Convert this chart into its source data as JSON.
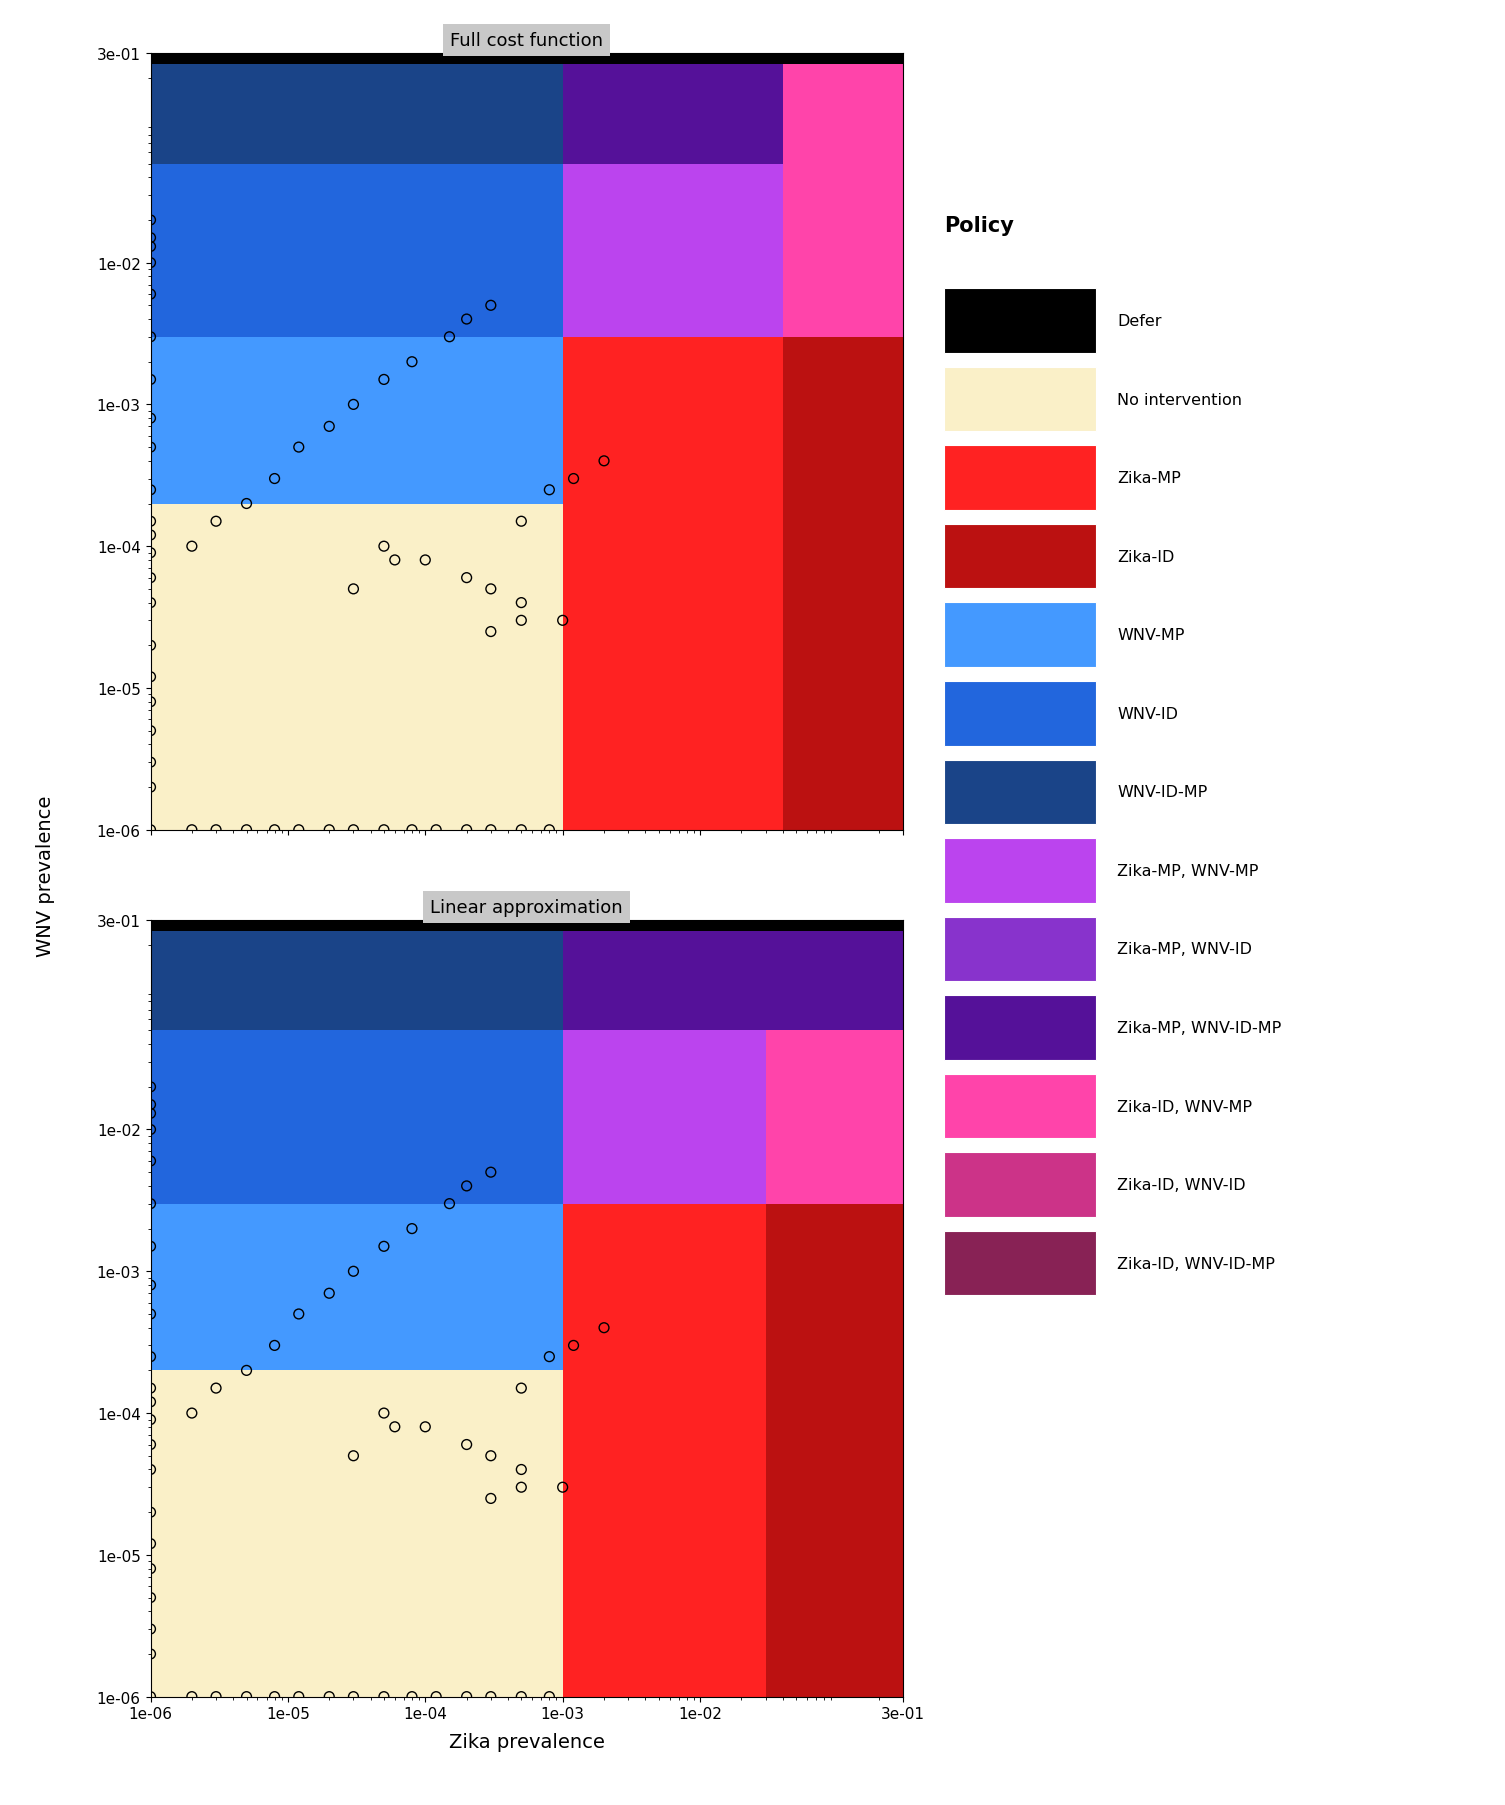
{
  "policy_colors": {
    "Defer": "#000000",
    "No intervention": "#FAF0C8",
    "Zika-MP": "#FF2222",
    "Zika-ID": "#BB1111",
    "WNV-MP": "#4499FF",
    "WNV-ID": "#2266DD",
    "WNV-ID-MP": "#1A4488",
    "Zika-MP, WNV-MP": "#BB44EE",
    "Zika-MP, WNV-ID": "#8833CC",
    "Zika-MP, WNV-ID-MP": "#551199",
    "Zika-ID, WNV-MP": "#FF44AA",
    "Zika-ID, WNV-ID": "#CC3388",
    "Zika-ID, WNV-ID-MP": "#882255"
  },
  "legend_order": [
    "Defer",
    "No intervention",
    "Zika-MP",
    "Zika-ID",
    "WNV-MP",
    "WNV-ID",
    "WNV-ID-MP",
    "Zika-MP, WNV-MP",
    "Zika-MP, WNV-ID",
    "Zika-MP, WNV-ID-MP",
    "Zika-ID, WNV-MP",
    "Zika-ID, WNV-ID",
    "Zika-ID, WNV-ID-MP"
  ],
  "subplot_titles": [
    "Full cost function",
    "Linear approximation"
  ],
  "xlabel": "Zika prevalence",
  "ylabel": "WNV prevalence",
  "xlim": [
    1e-06,
    0.3
  ],
  "ylim": [
    1e-06,
    0.3
  ],
  "scatter_points": [
    [
      1e-06,
      1e-06
    ],
    [
      1e-06,
      2e-06
    ],
    [
      1e-06,
      3e-06
    ],
    [
      1e-06,
      5e-06
    ],
    [
      1e-06,
      8e-06
    ],
    [
      1e-06,
      1.2e-05
    ],
    [
      1e-06,
      2e-05
    ],
    [
      1e-06,
      4e-05
    ],
    [
      1e-06,
      6e-05
    ],
    [
      1e-06,
      9e-05
    ],
    [
      1e-06,
      0.00012
    ],
    [
      1e-06,
      0.00015
    ],
    [
      1e-06,
      0.00025
    ],
    [
      1e-06,
      0.0005
    ],
    [
      1e-06,
      0.0008
    ],
    [
      1e-06,
      0.0015
    ],
    [
      1e-06,
      0.003
    ],
    [
      1e-06,
      0.006
    ],
    [
      1e-06,
      0.01
    ],
    [
      1e-06,
      0.013
    ],
    [
      1e-06,
      0.015
    ],
    [
      1e-06,
      0.02
    ],
    [
      2e-06,
      0.0001
    ],
    [
      3e-06,
      0.00015
    ],
    [
      5e-06,
      0.0002
    ],
    [
      8e-06,
      0.0003
    ],
    [
      1.2e-05,
      0.0005
    ],
    [
      2e-05,
      0.0007
    ],
    [
      3e-05,
      0.001
    ],
    [
      5e-05,
      0.0015
    ],
    [
      8e-05,
      0.002
    ],
    [
      0.00015,
      0.003
    ],
    [
      0.0002,
      0.004
    ],
    [
      0.0003,
      0.005
    ],
    [
      0.0005,
      0.00015
    ],
    [
      0.0008,
      0.00025
    ],
    [
      0.0012,
      0.0003
    ],
    [
      0.002,
      0.0004
    ],
    [
      5e-05,
      0.0001
    ],
    [
      0.0001,
      8e-05
    ],
    [
      0.0002,
      6e-05
    ],
    [
      0.0003,
      5e-05
    ],
    [
      0.0005,
      4e-05
    ],
    [
      0.001,
      3e-05
    ],
    [
      3e-05,
      5e-05
    ],
    [
      6e-05,
      8e-05
    ],
    [
      2e-06,
      1e-06
    ],
    [
      3e-06,
      1e-06
    ],
    [
      5e-06,
      1e-06
    ],
    [
      8e-06,
      1e-06
    ],
    [
      1.2e-05,
      1e-06
    ],
    [
      2e-05,
      1e-06
    ],
    [
      3e-05,
      1e-06
    ],
    [
      5e-05,
      1e-06
    ],
    [
      8e-05,
      1e-06
    ],
    [
      0.00012,
      1e-06
    ],
    [
      0.0002,
      1e-06
    ],
    [
      0.0003,
      1e-06
    ],
    [
      0.0005,
      1e-06
    ],
    [
      0.0008,
      1e-06
    ],
    [
      0.0003,
      2.5e-05
    ],
    [
      0.0005,
      3e-05
    ]
  ],
  "full_cost_regions": [
    {
      "policy": "Defer",
      "xmin": 1e-06,
      "xmax": 0.3,
      "ymin": 0.25,
      "ymax": 0.3
    },
    {
      "policy": "WNV-ID-MP",
      "xmin": 1e-06,
      "xmax": 0.001,
      "ymin": 0.05,
      "ymax": 0.25
    },
    {
      "policy": "WNV-ID",
      "xmin": 1e-06,
      "xmax": 0.001,
      "ymin": 0.003,
      "ymax": 0.05
    },
    {
      "policy": "WNV-MP",
      "xmin": 1e-06,
      "xmax": 0.001,
      "ymin": 0.0002,
      "ymax": 0.003
    },
    {
      "policy": "No intervention",
      "xmin": 1e-06,
      "xmax": 0.001,
      "ymin": 1e-06,
      "ymax": 0.0002
    },
    {
      "policy": "Zika-MP, WNV-ID-MP",
      "xmin": 0.001,
      "xmax": 0.04,
      "ymin": 0.05,
      "ymax": 0.25
    },
    {
      "policy": "Zika-MP, WNV-MP",
      "xmin": 0.001,
      "xmax": 0.04,
      "ymin": 0.003,
      "ymax": 0.05
    },
    {
      "policy": "Zika-MP",
      "xmin": 0.001,
      "xmax": 0.04,
      "ymin": 1e-06,
      "ymax": 0.003
    },
    {
      "policy": "Zika-ID, WNV-MP",
      "xmin": 0.04,
      "xmax": 0.3,
      "ymin": 0.003,
      "ymax": 0.25
    },
    {
      "policy": "Zika-ID",
      "xmin": 0.04,
      "xmax": 0.3,
      "ymin": 1e-06,
      "ymax": 0.003
    }
  ],
  "linear_approx_regions": [
    {
      "policy": "Defer",
      "xmin": 1e-06,
      "xmax": 0.3,
      "ymin": 0.25,
      "ymax": 0.3
    },
    {
      "policy": "WNV-ID-MP",
      "xmin": 1e-06,
      "xmax": 0.001,
      "ymin": 0.05,
      "ymax": 0.25
    },
    {
      "policy": "WNV-ID",
      "xmin": 1e-06,
      "xmax": 0.001,
      "ymin": 0.003,
      "ymax": 0.05
    },
    {
      "policy": "WNV-MP",
      "xmin": 1e-06,
      "xmax": 0.001,
      "ymin": 0.0002,
      "ymax": 0.003
    },
    {
      "policy": "No intervention",
      "xmin": 1e-06,
      "xmax": 0.001,
      "ymin": 1e-06,
      "ymax": 0.0002
    },
    {
      "policy": "Zika-MP, WNV-ID-MP",
      "xmin": 0.001,
      "xmax": 0.3,
      "ymin": 0.05,
      "ymax": 0.25
    },
    {
      "policy": "Zika-MP, WNV-MP",
      "xmin": 0.001,
      "xmax": 0.03,
      "ymin": 0.003,
      "ymax": 0.05
    },
    {
      "policy": "Zika-MP",
      "xmin": 0.001,
      "xmax": 0.03,
      "ymin": 1e-06,
      "ymax": 0.003
    },
    {
      "policy": "Zika-ID, WNV-MP",
      "xmin": 0.03,
      "xmax": 0.3,
      "ymin": 0.003,
      "ymax": 0.05
    },
    {
      "policy": "Zika-ID",
      "xmin": 0.03,
      "xmax": 0.3,
      "ymin": 1e-06,
      "ymax": 0.003
    }
  ],
  "fig_width": 15.05,
  "fig_height": 18.06,
  "dpi": 100
}
